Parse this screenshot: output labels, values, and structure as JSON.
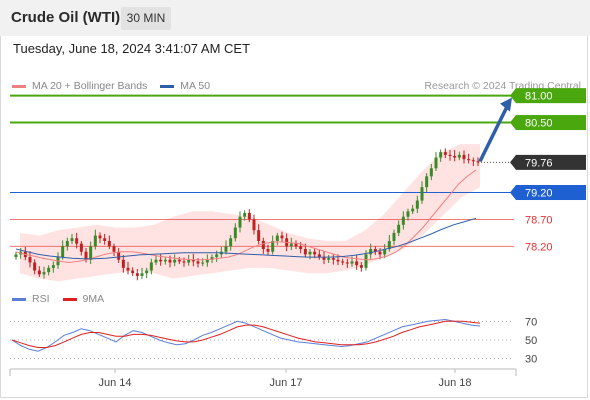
{
  "header": {
    "title": "Crude Oil (WTI)",
    "timeframe": "30 MIN"
  },
  "datetime": "Tuesday, June 18, 2024 3:41:07 AM CET",
  "legend": {
    "items": [
      {
        "label": "MA 20 + Bollinger Bands",
        "color": "#f08080"
      },
      {
        "label": "MA 50",
        "color": "#2f5ea8"
      }
    ]
  },
  "credit": "Research © 2024 Trading Central",
  "rsi_legend": {
    "items": [
      {
        "label": "RSI",
        "color": "#5b7fd6"
      },
      {
        "label": "9MA",
        "color": "#e02020"
      }
    ]
  },
  "colors": {
    "resistance": "#4aa80e",
    "pivot": "#1e5fd1",
    "support": "#e83030",
    "current": "#333333",
    "candle_up": "#3a8a2a",
    "candle_down": "#c02020",
    "band_fill": "#ffd7d7",
    "arrow": "#2f5fa8"
  },
  "chart_data": [
    {
      "type": "candlestick",
      "title": "Crude Oil (WTI)",
      "x_tick_labels": [
        "Jun 14",
        "Jun 17",
        "Jun 18"
      ],
      "y_range": [
        77.5,
        81.3
      ],
      "levels": [
        {
          "label": "81.00",
          "value": 81.0,
          "kind": "resistance"
        },
        {
          "label": "80.50",
          "value": 80.5,
          "kind": "resistance"
        },
        {
          "label": "79.76",
          "value": 79.76,
          "kind": "current"
        },
        {
          "label": "79.20",
          "value": 79.2,
          "kind": "pivot"
        },
        {
          "label": "78.70",
          "value": 78.7,
          "kind": "support"
        },
        {
          "label": "78.20",
          "value": 78.2,
          "kind": "support"
        }
      ],
      "close_series": [
        78.05,
        78.1,
        78.0,
        77.9,
        77.75,
        77.68,
        77.72,
        77.8,
        77.85,
        78.0,
        78.2,
        78.3,
        78.35,
        78.25,
        78.1,
        77.95,
        78.2,
        78.4,
        78.35,
        78.3,
        78.2,
        78.1,
        77.95,
        77.8,
        77.75,
        77.7,
        77.65,
        77.7,
        77.75,
        77.9,
        77.95,
        77.92,
        77.95,
        77.9,
        77.95,
        77.92,
        77.9,
        77.95,
        77.92,
        77.88,
        77.9,
        77.95,
        78.0,
        78.05,
        78.1,
        78.2,
        78.35,
        78.55,
        78.75,
        78.82,
        78.7,
        78.5,
        78.3,
        78.15,
        78.1,
        78.3,
        78.4,
        78.35,
        78.2,
        78.25,
        78.2,
        78.15,
        78.05,
        78.1,
        78.05,
        78.0,
        77.95,
        77.98,
        77.95,
        77.92,
        77.9,
        77.88,
        77.92,
        77.85,
        77.8,
        78.05,
        78.15,
        78.1,
        78.05,
        78.15,
        78.3,
        78.45,
        78.6,
        78.75,
        78.85,
        78.9,
        79.05,
        79.3,
        79.5,
        79.65,
        79.85,
        79.95,
        79.9,
        79.88,
        79.85,
        79.9,
        79.82,
        79.8,
        79.78,
        79.76
      ],
      "ma20": [
        78.1,
        78.05,
        78.02,
        77.98,
        77.95,
        77.92,
        77.9,
        77.92,
        77.95,
        78.0,
        78.05,
        78.08,
        78.1,
        78.1,
        78.08,
        78.05,
        78.02,
        78.0,
        77.98,
        77.96,
        77.95,
        77.95,
        77.96,
        77.98,
        78.0,
        78.05,
        78.12,
        78.2,
        78.25,
        78.28,
        78.28,
        78.27,
        78.25,
        78.2,
        78.15,
        78.1,
        78.05,
        78.0,
        77.98,
        77.96,
        77.95,
        77.98,
        78.02,
        78.1,
        78.22,
        78.38,
        78.55,
        78.75,
        78.95,
        79.15,
        79.35,
        79.5,
        79.62
      ],
      "ma50": [
        78.15,
        78.1,
        78.05,
        78.02,
        78.0,
        77.98,
        77.97,
        77.97,
        77.98,
        78.0,
        78.02,
        78.04,
        78.05,
        78.06,
        78.07,
        78.08,
        78.08,
        78.08,
        78.08,
        78.07,
        78.06,
        78.05,
        78.04,
        78.03,
        78.02,
        78.01,
        78.0,
        78.0,
        78.0,
        78.01,
        78.03,
        78.06,
        78.1,
        78.15,
        78.2,
        78.27,
        78.35,
        78.43,
        78.52,
        78.6,
        78.66,
        78.72
      ],
      "bollinger_upper": [
        78.45,
        78.4,
        78.5,
        78.55,
        78.6,
        78.55,
        78.55,
        78.6,
        78.75,
        78.85,
        78.85,
        78.8,
        78.75,
        78.6,
        78.45,
        78.35,
        78.3,
        78.3,
        78.5,
        78.8,
        79.2,
        79.6,
        79.95,
        80.1,
        80.1
      ],
      "bollinger_lower": [
        77.7,
        77.6,
        77.55,
        77.6,
        77.65,
        77.7,
        77.75,
        77.7,
        77.6,
        77.65,
        77.7,
        77.75,
        77.8,
        77.8,
        77.75,
        77.7,
        77.7,
        77.75,
        77.85,
        78.0,
        78.15,
        78.4,
        78.75,
        79.1,
        79.3
      ]
    },
    {
      "type": "line",
      "title": "RSI",
      "y_tick_labels": [
        "70",
        "50",
        "30"
      ],
      "y_range": [
        20,
        80
      ],
      "series": [
        {
          "name": "RSI",
          "values": [
            50,
            44,
            40,
            38,
            42,
            48,
            55,
            58,
            62,
            60,
            56,
            52,
            48,
            55,
            60,
            58,
            54,
            50,
            47,
            45,
            46,
            50,
            55,
            58,
            62,
            66,
            70,
            68,
            64,
            60,
            56,
            52,
            50,
            48,
            47,
            46,
            45,
            44,
            43,
            44,
            46,
            48,
            52,
            56,
            60,
            64,
            66,
            68,
            70,
            71,
            72,
            70,
            68,
            66,
            65
          ]
        },
        {
          "name": "9MA",
          "values": [
            50,
            47,
            44,
            42,
            42,
            44,
            48,
            52,
            56,
            58,
            58,
            56,
            54,
            54,
            56,
            56,
            55,
            53,
            51,
            49,
            48,
            48,
            50,
            53,
            56,
            60,
            64,
            66,
            66,
            64,
            61,
            58,
            55,
            52,
            50,
            48,
            47,
            46,
            45,
            45,
            45,
            46,
            48,
            51,
            54,
            58,
            61,
            64,
            66,
            68,
            70,
            70,
            70,
            69,
            68
          ]
        }
      ]
    }
  ]
}
